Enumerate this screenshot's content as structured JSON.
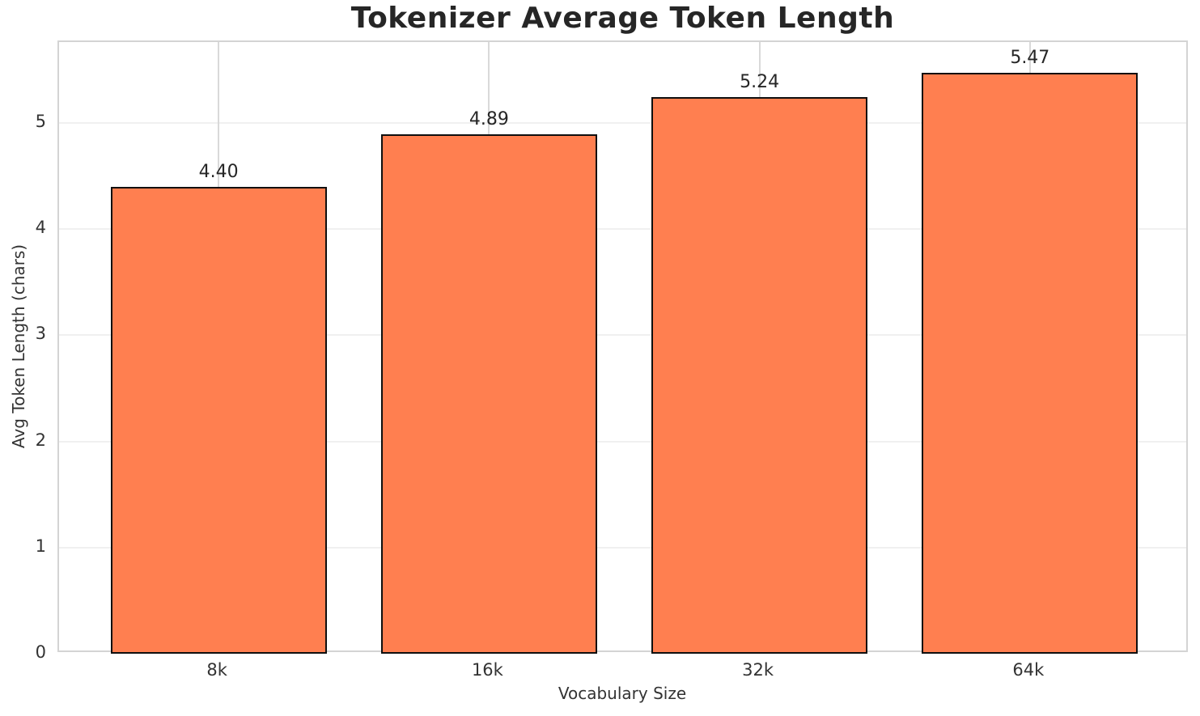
{
  "chart_data": {
    "type": "bar",
    "title": "Tokenizer Average Token Length",
    "xlabel": "Vocabulary Size",
    "ylabel": "Avg Token Length (chars)",
    "categories": [
      "8k",
      "16k",
      "32k",
      "64k"
    ],
    "values": [
      4.4,
      4.89,
      5.24,
      5.47
    ],
    "bar_labels": [
      "4.40",
      "4.89",
      "5.24",
      "5.47"
    ],
    "yticks": [
      0,
      1,
      2,
      3,
      4,
      5
    ],
    "ylim": [
      0,
      5.76
    ],
    "bar_width_fraction": 0.8,
    "grid": "both",
    "legend": "none",
    "colors": {
      "bar_fill": "#FF7F50",
      "bar_edge": "#0F0F0F",
      "h_grid": "#F0F0F0",
      "v_grid": "#D9D9D9",
      "spine": "#D4D4D4",
      "tick_text": "#333333",
      "title_text": "#262626",
      "background": "#FFFFFF"
    }
  }
}
